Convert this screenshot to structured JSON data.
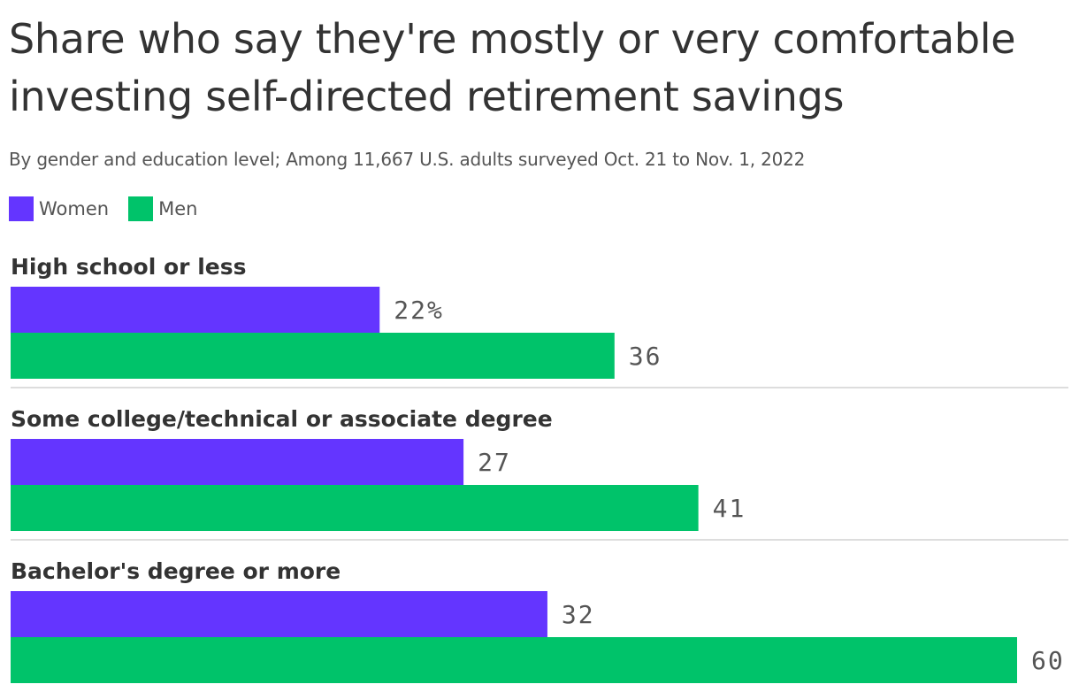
{
  "title": "Share who say they're mostly or very comfortable investing self-directed retirement savings",
  "subtitle": "By gender and education level; Among 11,667 U.S. adults surveyed Oct. 21 to Nov. 1, 2022",
  "colors": {
    "women": "#6435FF",
    "men": "#00C36A",
    "divider": "#DDDDDD"
  },
  "chart_data": {
    "type": "bar",
    "orientation": "horizontal",
    "categories": [
      "High school or less",
      "Some college/technical or associate degree",
      "Bachelor's degree or more"
    ],
    "series": [
      {
        "name": "Women",
        "values": [
          22,
          27,
          32
        ],
        "labels": [
          "22%",
          "27",
          "32"
        ]
      },
      {
        "name": "Men",
        "values": [
          36,
          41,
          60
        ],
        "labels": [
          "36",
          "41",
          "60"
        ]
      }
    ],
    "xlim": [
      0,
      60
    ],
    "legend": "top-left",
    "grid": false
  }
}
